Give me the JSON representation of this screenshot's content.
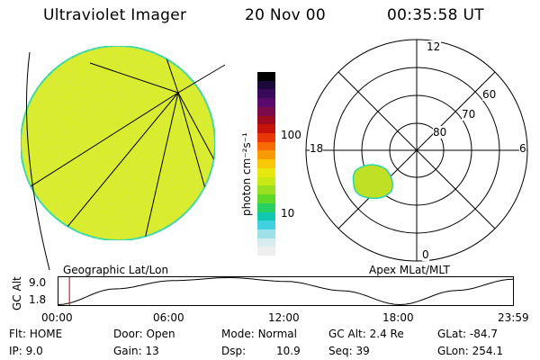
{
  "header": {
    "instrument": "Ultraviolet Imager",
    "date": "20 Nov 00",
    "time": "00:35:58 UT"
  },
  "colorbar": {
    "unit_label": "photon cm⁻²s⁻¹",
    "ticks": [
      "100",
      "10"
    ],
    "colors": [
      "#000000",
      "#1b0a3a",
      "#3a0a5a",
      "#5a0a6a",
      "#7a0a4a",
      "#a00a20",
      "#c8120c",
      "#e83808",
      "#f86a06",
      "#f89a06",
      "#f8c808",
      "#e8e810",
      "#c8e818",
      "#98e020",
      "#60d828",
      "#28d060",
      "#10c8b0",
      "#40d0e0",
      "#a0e0e8",
      "#d8ecef",
      "#eeeeee"
    ]
  },
  "geo_panel": {
    "label": "Geographic Lat/Lon",
    "fill_color": "#dbec25",
    "edge_color": "#2ad6a8"
  },
  "polar_panel": {
    "label": "Apex MLat/MLT",
    "mlt_labels": {
      "top": "12",
      "left": "18",
      "right": "6",
      "bottom": "0"
    },
    "lat_labels": [
      "60",
      "70",
      "80"
    ]
  },
  "altitude_plot": {
    "axis_label": "GC Alt",
    "y_ticks": [
      "9.0",
      "1.8"
    ],
    "x_ticks": [
      "00:00",
      "06:00",
      "12:00",
      "18:00",
      "23:59"
    ],
    "series": [
      {
        "hour": 0.0,
        "alt": 1.8
      },
      {
        "hour": 3.0,
        "alt": 6.0
      },
      {
        "hour": 6.0,
        "alt": 8.2
      },
      {
        "hour": 9.0,
        "alt": 9.0
      },
      {
        "hour": 12.0,
        "alt": 8.0
      },
      {
        "hour": 15.0,
        "alt": 5.5
      },
      {
        "hour": 18.0,
        "alt": 1.8
      },
      {
        "hour": 21.0,
        "alt": 5.6
      },
      {
        "hour": 23.98,
        "alt": 8.6
      }
    ],
    "current_hour": 0.6,
    "marker_color": "#d02020"
  },
  "status": {
    "flt_label": "Flt:",
    "flt_value": "HOME",
    "ip_label": "IP:",
    "ip_value": "9.0",
    "door_label": "Door:",
    "door_value": "Open",
    "gain_label": "Gain:",
    "gain_value": "13",
    "mode_label": "Mode:",
    "mode_value": "Normal",
    "dsp_label": "Dsp:",
    "dsp_value": "10.9",
    "gcalt_label": "GC Alt:",
    "gcalt_value": "2.4 Re",
    "seq_label": "Seq:",
    "seq_value": "39",
    "glat_label": "GLat:",
    "glat_value": "-84.7",
    "glon_label": "GLon:",
    "glon_value": "254.1"
  }
}
